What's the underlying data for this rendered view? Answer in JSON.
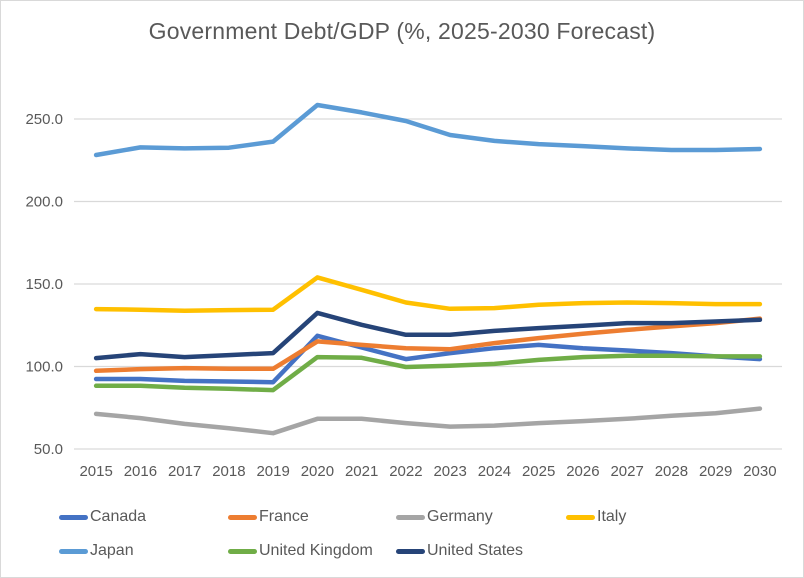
{
  "chart_data": {
    "type": "line",
    "title": "Government  Debt/GDP (%, 2025-2030 Forecast)",
    "xlabel": "",
    "ylabel": "",
    "ylim": [
      50,
      260
    ],
    "yticks": [
      50,
      100,
      150,
      200,
      250
    ],
    "ytick_labels": [
      "50.0",
      "100.0",
      "150.0",
      "200.0",
      "250.0"
    ],
    "grid": true,
    "legend_position": "bottom",
    "x": [
      "2015",
      "2016",
      "2017",
      "2018",
      "2019",
      "2020",
      "2021",
      "2022",
      "2023",
      "2024",
      "2025",
      "2026",
      "2027",
      "2028",
      "2029",
      "2030"
    ],
    "series": [
      {
        "name": "Canada",
        "color": "#4472c4",
        "values": [
          92.4,
          92.4,
          91.3,
          90.9,
          90.5,
          118.6,
          111.5,
          104.5,
          108.1,
          111.1,
          113.1,
          111.1,
          109.7,
          108.1,
          106.1,
          104.5
        ]
      },
      {
        "name": "France",
        "color": "#ed7d31",
        "values": [
          97.4,
          98.4,
          99.0,
          98.6,
          98.6,
          115.2,
          113.1,
          111.1,
          110.5,
          114.2,
          117.2,
          119.8,
          122.2,
          124.3,
          126.3,
          129.0
        ]
      },
      {
        "name": "Germany",
        "color": "#a5a5a5",
        "values": [
          71.3,
          68.7,
          65.2,
          62.6,
          59.6,
          68.3,
          68.3,
          65.7,
          63.6,
          64.2,
          65.7,
          66.9,
          68.3,
          70.1,
          71.7,
          74.5
        ]
      },
      {
        "name": "Italy",
        "color": "#ffc000",
        "values": [
          134.8,
          134.4,
          133.8,
          134.2,
          134.4,
          154.0,
          146.5,
          138.8,
          135.0,
          135.4,
          137.4,
          138.4,
          138.8,
          138.4,
          137.8,
          137.8
        ]
      },
      {
        "name": "Japan",
        "color": "#5b9bd5",
        "values": [
          228.2,
          232.8,
          232.2,
          232.6,
          236.3,
          258.5,
          254.0,
          248.8,
          240.3,
          236.7,
          234.8,
          233.6,
          232.2,
          231.2,
          231.2,
          231.8
        ]
      },
      {
        "name": "United Kingdom",
        "color": "#70ad47",
        "values": [
          88.3,
          88.3,
          87.1,
          86.5,
          85.7,
          105.7,
          105.3,
          99.7,
          100.4,
          101.6,
          104.0,
          105.7,
          106.5,
          106.5,
          106.1,
          106.1
        ]
      },
      {
        "name": "United States",
        "color": "#264478",
        "values": [
          105.1,
          107.5,
          105.7,
          106.9,
          108.1,
          132.5,
          125.3,
          119.2,
          119.2,
          121.6,
          123.3,
          124.7,
          126.3,
          126.3,
          127.3,
          128.3
        ]
      }
    ]
  }
}
